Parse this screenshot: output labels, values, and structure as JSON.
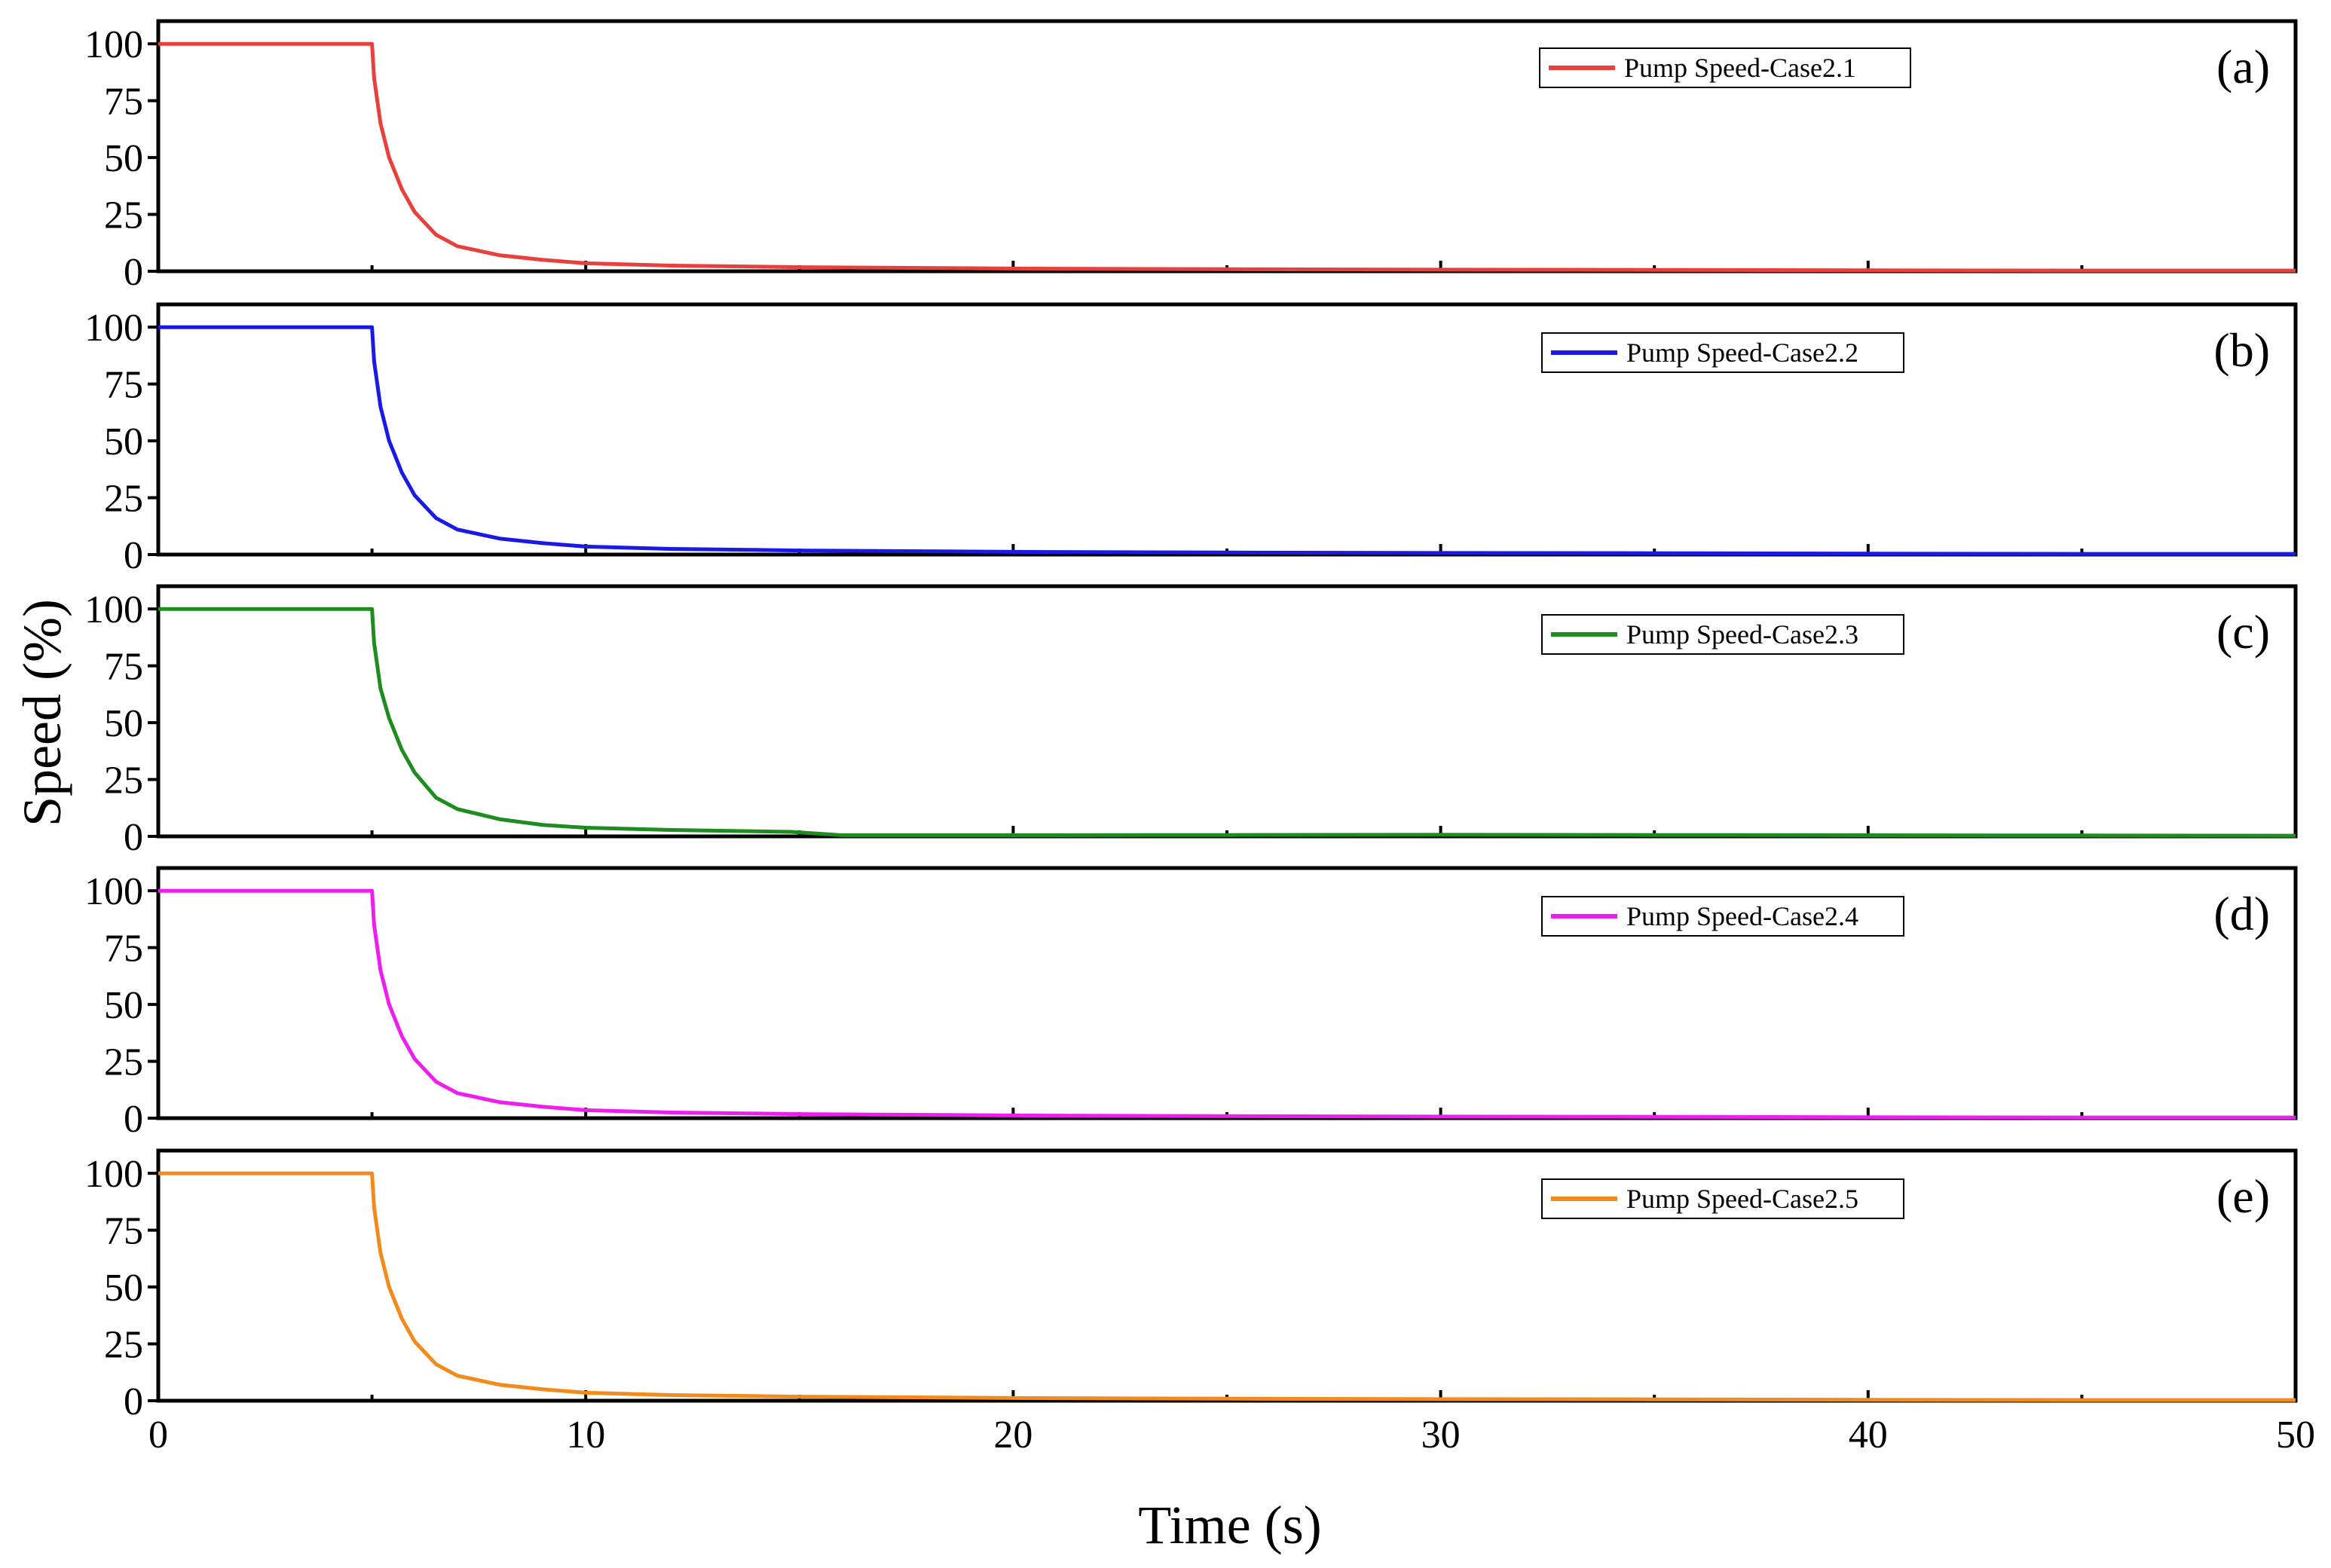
{
  "figure": {
    "xlabel": "Time (s)",
    "ylabel": "Speed (%)"
  },
  "chart_data": [
    {
      "type": "line",
      "panel_label": "(a)",
      "legend": "Pump Speed-Case2.1",
      "color": "#e8413d",
      "xlim": [
        0,
        50
      ],
      "ylim": [
        0,
        110
      ],
      "xticks": [
        0,
        10,
        20,
        30,
        40,
        50
      ],
      "yticks": [
        0,
        25,
        50,
        75,
        100
      ],
      "yticklabels": [
        "0",
        "25",
        "50",
        "75",
        "100"
      ],
      "x": [
        0,
        5,
        5.05,
        5.2,
        5.4,
        5.7,
        6,
        6.5,
        7,
        8,
        9,
        10,
        12,
        15,
        20,
        25,
        30,
        35,
        40,
        45,
        50
      ],
      "y": [
        100,
        100,
        85,
        65,
        50,
        36,
        26,
        16,
        11,
        7,
        5,
        3.5,
        2.5,
        1.8,
        1.2,
        0.9,
        0.7,
        0.6,
        0.4,
        0.3,
        0.3
      ]
    },
    {
      "type": "line",
      "panel_label": "(b)",
      "legend": "Pump Speed-Case2.2",
      "color": "#1a1ae6",
      "xlim": [
        0,
        50
      ],
      "ylim": [
        0,
        110
      ],
      "xticks": [
        0,
        10,
        20,
        30,
        40,
        50
      ],
      "yticks": [
        0,
        25,
        50,
        75,
        100
      ],
      "yticklabels": [
        "0",
        "25",
        "50",
        "75",
        "100"
      ],
      "x": [
        0,
        5,
        5.05,
        5.2,
        5.4,
        5.7,
        6,
        6.5,
        7,
        8,
        9,
        10,
        12,
        15,
        20,
        25,
        30,
        35,
        40,
        45,
        50
      ],
      "y": [
        100,
        100,
        85,
        65,
        50,
        36,
        26,
        16,
        11,
        7,
        5,
        3.5,
        2.5,
        1.8,
        1.2,
        0.9,
        0.7,
        0.6,
        0.4,
        0.3,
        0.3
      ]
    },
    {
      "type": "line",
      "panel_label": "(c)",
      "legend": "Pump Speed-Case2.3",
      "color": "#1f8c1f",
      "xlim": [
        0,
        50
      ],
      "ylim": [
        0,
        110
      ],
      "xticks": [
        0,
        10,
        20,
        30,
        40,
        50
      ],
      "yticks": [
        0,
        25,
        50,
        75,
        100
      ],
      "yticklabels": [
        "0",
        "25",
        "50",
        "75",
        "100"
      ],
      "x": [
        0,
        5,
        5.05,
        5.2,
        5.4,
        5.7,
        6,
        6.5,
        7,
        8,
        9,
        10,
        12,
        14.8,
        16,
        20,
        25,
        30,
        35,
        40,
        45,
        50
      ],
      "y": [
        100,
        100,
        85,
        65,
        52,
        38,
        28,
        17,
        12,
        7.5,
        5,
        3.8,
        2.8,
        2,
        0.5,
        0.5,
        0.6,
        0.7,
        0.6,
        0.5,
        0.4,
        0.3
      ]
    },
    {
      "type": "line",
      "panel_label": "(d)",
      "legend": "Pump Speed-Case2.4",
      "color": "#ee1fee",
      "xlim": [
        0,
        50
      ],
      "ylim": [
        0,
        110
      ],
      "xticks": [
        0,
        10,
        20,
        30,
        40,
        50
      ],
      "yticks": [
        0,
        25,
        50,
        75,
        100
      ],
      "yticklabels": [
        "0",
        "25",
        "50",
        "75",
        "100"
      ],
      "x": [
        0,
        5,
        5.05,
        5.2,
        5.4,
        5.7,
        6,
        6.5,
        7,
        8,
        9,
        10,
        12,
        15,
        20,
        25,
        30,
        35,
        40,
        45,
        50
      ],
      "y": [
        100,
        100,
        85,
        65,
        50,
        36,
        26,
        16,
        11,
        7,
        5,
        3.5,
        2.5,
        1.8,
        1.2,
        0.9,
        0.7,
        0.6,
        0.4,
        0.3,
        0.3
      ]
    },
    {
      "type": "line",
      "panel_label": "(e)",
      "legend": "Pump Speed-Case2.5",
      "color": "#f28a1c",
      "xlim": [
        0,
        50
      ],
      "ylim": [
        0,
        110
      ],
      "xticks": [
        0,
        10,
        20,
        30,
        40,
        50
      ],
      "xticklabels": [
        "0",
        "10",
        "20",
        "30",
        "40",
        "50"
      ],
      "yticks": [
        0,
        25,
        50,
        75,
        100
      ],
      "yticklabels": [
        "0",
        "25",
        "50",
        "75",
        "100"
      ],
      "x": [
        0,
        5,
        5.05,
        5.2,
        5.4,
        5.7,
        6,
        6.5,
        7,
        8,
        9,
        10,
        12,
        15,
        20,
        25,
        30,
        35,
        40,
        45,
        50
      ],
      "y": [
        100,
        100,
        85,
        65,
        50,
        36,
        26,
        16,
        11,
        7,
        5,
        3.5,
        2.5,
        1.8,
        1.2,
        0.9,
        0.7,
        0.6,
        0.4,
        0.3,
        0.3
      ]
    }
  ]
}
